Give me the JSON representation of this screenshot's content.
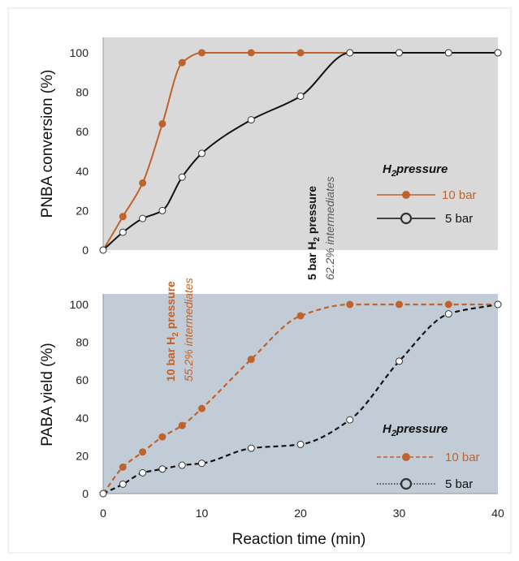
{
  "colors": {
    "ten_bar": "#c0622b",
    "five_bar": "#111111",
    "top_bg": "#d9d9d9",
    "bottom_bg": "#c2ccd7",
    "annot_gray": "#595959"
  },
  "shared_xlabel": "Reaction time (min)",
  "chart_data": [
    {
      "type": "line",
      "ylabel": "PNBA conversion (%)",
      "xlabel": "",
      "xlim": [
        0,
        40
      ],
      "ylim": [
        0,
        100
      ],
      "xticks": [
        "0",
        "10",
        "20",
        "30",
        "40"
      ],
      "yticks": [
        "0",
        "20",
        "40",
        "60",
        "80",
        "100"
      ],
      "grid": false,
      "legend": {
        "position": "right",
        "title_prefix": "H",
        "title_sub": "2",
        "title_suffix": "pressure"
      },
      "series": [
        {
          "name": "10 bar",
          "line": "solid",
          "marker": "filled-circle",
          "color": "#c0622b",
          "x": [
            0,
            2,
            4,
            6,
            8,
            10,
            15,
            20,
            25,
            30,
            35,
            40
          ],
          "y": [
            0,
            17,
            34,
            64,
            95,
            100,
            100,
            100,
            100,
            100,
            100,
            100
          ]
        },
        {
          "name": "5 bar",
          "line": "solid",
          "marker": "open-circle",
          "color": "#111111",
          "x": [
            0,
            2,
            4,
            6,
            8,
            10,
            15,
            20,
            25,
            30,
            35,
            40
          ],
          "y": [
            0,
            9,
            16,
            20,
            37,
            49,
            66,
            78,
            100,
            100,
            100,
            100
          ]
        }
      ],
      "annotations": [
        {
          "bold_prefix": "5 bar H",
          "bold_sub": "2",
          "bold_suffix": " pressure",
          "italic": "62.2% intermediates"
        }
      ]
    },
    {
      "type": "line",
      "ylabel": "PABA yield (%)",
      "xlabel": "Reaction time (min)",
      "xlim": [
        0,
        40
      ],
      "ylim": [
        0,
        100
      ],
      "xticks": [
        "0",
        "10",
        "20",
        "30",
        "40"
      ],
      "yticks": [
        "0",
        "20",
        "40",
        "60",
        "80",
        "100"
      ],
      "grid": false,
      "legend": {
        "position": "bottom-right",
        "title_prefix": "H",
        "title_sub": "2",
        "title_suffix": "pressure"
      },
      "series": [
        {
          "name": "10 bar",
          "line": "dashed",
          "marker": "filled-circle",
          "color": "#c0622b",
          "x": [
            0,
            2,
            4,
            6,
            8,
            10,
            15,
            20,
            25,
            30,
            35,
            40
          ],
          "y": [
            0,
            14,
            22,
            30,
            36,
            45,
            71,
            94,
            100,
            100,
            100,
            100
          ]
        },
        {
          "name": "5 bar",
          "line": "dashed",
          "marker": "open-circle",
          "color": "#111111",
          "x": [
            0,
            2,
            4,
            6,
            8,
            10,
            15,
            20,
            25,
            30,
            35,
            40
          ],
          "y": [
            0,
            5,
            11,
            13,
            15,
            16,
            24,
            26,
            39,
            70,
            95,
            100
          ]
        }
      ],
      "annotations": [
        {
          "bold_prefix": "10 bar H",
          "bold_sub": "2",
          "bold_suffix": " pressure",
          "italic": "55.2% intermediates"
        }
      ]
    }
  ]
}
